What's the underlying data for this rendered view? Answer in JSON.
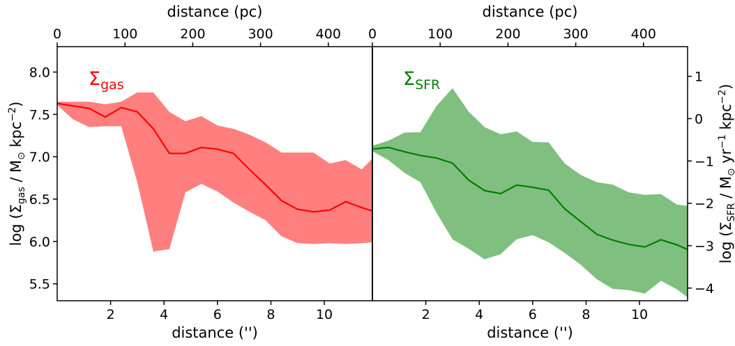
{
  "chart_data": [
    {
      "type": "area",
      "panel": "left",
      "series_label": {
        "symbol": "Σ",
        "sub": "gas"
      },
      "color": "#ff0000",
      "fill_color": "#ff7f7f",
      "xlabel": "distance ('')",
      "x2label": "distance (pc)",
      "ylabel": {
        "pre": "log (Σ",
        "sub": "gas",
        "mid": " / M",
        "sym": "⊙",
        "post": " kpc",
        "sup": "−2",
        "end": ")"
      },
      "xlim": [
        0,
        11.8
      ],
      "ylim": [
        5.3,
        8.3
      ],
      "x2lim": [
        0,
        465
      ],
      "xticks": [
        2,
        4,
        6,
        8,
        10
      ],
      "xticklabels": [
        "2",
        "4",
        "6",
        "8",
        "10"
      ],
      "x2ticks": [
        0,
        100,
        200,
        300,
        400
      ],
      "x2ticklabels": [
        "0",
        "100",
        "200",
        "300",
        "400"
      ],
      "yticks": [
        5.5,
        6.0,
        6.5,
        7.0,
        7.5,
        8.0
      ],
      "yticklabels": [
        "5.5",
        "6.0",
        "6.5",
        "7.0",
        "7.5",
        "8.0"
      ],
      "x": [
        0,
        0.6,
        1.2,
        1.8,
        2.4,
        3.0,
        3.6,
        4.2,
        4.8,
        5.4,
        6.0,
        6.6,
        7.2,
        7.8,
        8.4,
        9.0,
        9.6,
        10.2,
        10.8,
        11.4,
        11.8
      ],
      "median": [
        7.63,
        7.6,
        7.57,
        7.47,
        7.58,
        7.53,
        7.33,
        7.04,
        7.04,
        7.11,
        7.09,
        7.04,
        6.85,
        6.67,
        6.48,
        6.38,
        6.35,
        6.37,
        6.47,
        6.4,
        6.36
      ],
      "upper": [
        7.65,
        7.65,
        7.65,
        7.62,
        7.65,
        7.76,
        7.76,
        7.53,
        7.42,
        7.48,
        7.37,
        7.33,
        7.26,
        7.17,
        7.05,
        7.05,
        7.05,
        6.92,
        6.96,
        6.85,
        6.98
      ],
      "lower": [
        7.61,
        7.44,
        7.35,
        7.36,
        7.36,
        6.7,
        5.88,
        5.91,
        6.58,
        6.68,
        6.59,
        6.46,
        6.35,
        6.25,
        6.06,
        5.98,
        5.97,
        5.98,
        5.97,
        5.98,
        5.99
      ]
    },
    {
      "type": "area",
      "panel": "right",
      "series_label": {
        "symbol": "Σ",
        "sub": "SFR"
      },
      "color": "#007f00",
      "fill_color": "#7fbf7f",
      "xlabel": "distance ('')",
      "x2label": "distance (pc)",
      "ylabel": {
        "pre": "log (Σ",
        "sub": "SFR",
        "mid": " / M",
        "sym": "⊙",
        "post": " yr",
        "sup": "−1",
        "post2": " kpc",
        "sup2": "−2",
        "end": ")"
      },
      "xlim": [
        0,
        11.8
      ],
      "ylim": [
        -4.3,
        1.7
      ],
      "x2lim": [
        0,
        465
      ],
      "xticks": [
        2,
        4,
        6,
        8,
        10
      ],
      "xticklabels": [
        "2",
        "4",
        "6",
        "8",
        "10"
      ],
      "x2ticks": [
        0,
        100,
        200,
        300,
        400
      ],
      "x2ticklabels": [
        "0",
        "100",
        "200",
        "300",
        "400"
      ],
      "yticks": [
        -4,
        -3,
        -2,
        -1,
        0,
        1
      ],
      "yticklabels": [
        "−4",
        "−3",
        "−2",
        "−1",
        "0",
        "1"
      ],
      "x": [
        0,
        0.6,
        1.2,
        1.8,
        2.4,
        3.0,
        3.6,
        4.2,
        4.8,
        5.4,
        6.0,
        6.6,
        7.2,
        7.8,
        8.4,
        9.0,
        9.6,
        10.2,
        10.8,
        11.4,
        11.8
      ],
      "median": [
        -0.72,
        -0.68,
        -0.78,
        -0.87,
        -0.93,
        -1.05,
        -1.45,
        -1.7,
        -1.77,
        -1.57,
        -1.62,
        -1.69,
        -2.13,
        -2.43,
        -2.73,
        -2.87,
        -2.97,
        -3.03,
        -2.86,
        -2.98,
        -3.09
      ],
      "upper": [
        -0.64,
        -0.52,
        -0.33,
        -0.32,
        0.3,
        0.72,
        0.17,
        -0.2,
        -0.37,
        -0.3,
        -0.55,
        -0.56,
        -1.06,
        -1.33,
        -1.5,
        -1.56,
        -1.74,
        -1.8,
        -1.78,
        -2.03,
        -2.06
      ],
      "lower": [
        -0.77,
        -0.98,
        -1.28,
        -1.5,
        -2.22,
        -2.85,
        -3.07,
        -3.32,
        -3.2,
        -2.85,
        -2.75,
        -2.92,
        -3.17,
        -3.45,
        -3.79,
        -4.02,
        -4.05,
        -4.13,
        -3.83,
        -4.03,
        -4.22
      ]
    }
  ]
}
